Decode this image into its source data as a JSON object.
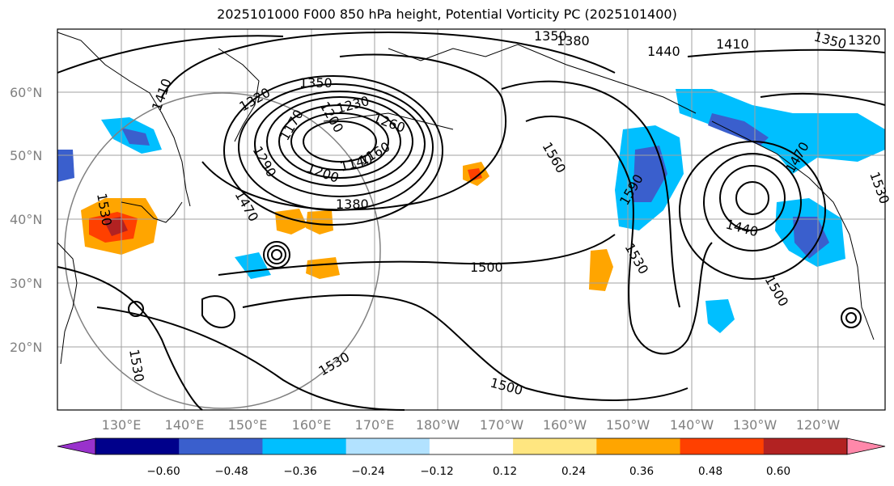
{
  "title": "2025101000 F000 850 hPa height, Potential Vorticity PC (2025101400)",
  "latitude_labels": [
    "60°N",
    "50°N",
    "40°N",
    "30°N",
    "20°N"
  ],
  "longitude_labels": [
    "130°E",
    "140°E",
    "150°E",
    "160°E",
    "170°E",
    "180°W",
    "170°W",
    "160°W",
    "150°W",
    "140°W",
    "130°W",
    "120°W"
  ],
  "colorbar": {
    "ticks": [
      "−0.60",
      "−0.48",
      "−0.36",
      "−0.24",
      "−0.12",
      "0.12",
      "0.24",
      "0.36",
      "0.48",
      "0.60"
    ],
    "colors": [
      "#9932cc",
      "#00008b",
      "#3a5fcd",
      "#00bfff",
      "#b2e2ff",
      "#ffffff",
      "#ffe680",
      "#ffa500",
      "#ff4000",
      "#b22222",
      "#ff88aa"
    ]
  },
  "contour_labels": {
    "low_center": [
      "1350",
      "1320",
      "1290",
      "1230",
      "1260",
      "1170",
      "1200",
      "1140",
      "1160",
      "1380",
      "1410",
      "1470",
      "1200"
    ],
    "top": [
      "1350",
      "1380",
      "1440",
      "1410",
      "1350",
      "1320"
    ],
    "mid": [
      "1500",
      "1560",
      "1590",
      "1530",
      "1440",
      "1470",
      "1500",
      "1530"
    ],
    "south": [
      "1530",
      "1530",
      "1500"
    ],
    "west": [
      "1530"
    ]
  },
  "colors": {
    "contour": "#000000",
    "coast": "#000000",
    "grid": "#a0a0a0",
    "axis_label": "#808080"
  }
}
